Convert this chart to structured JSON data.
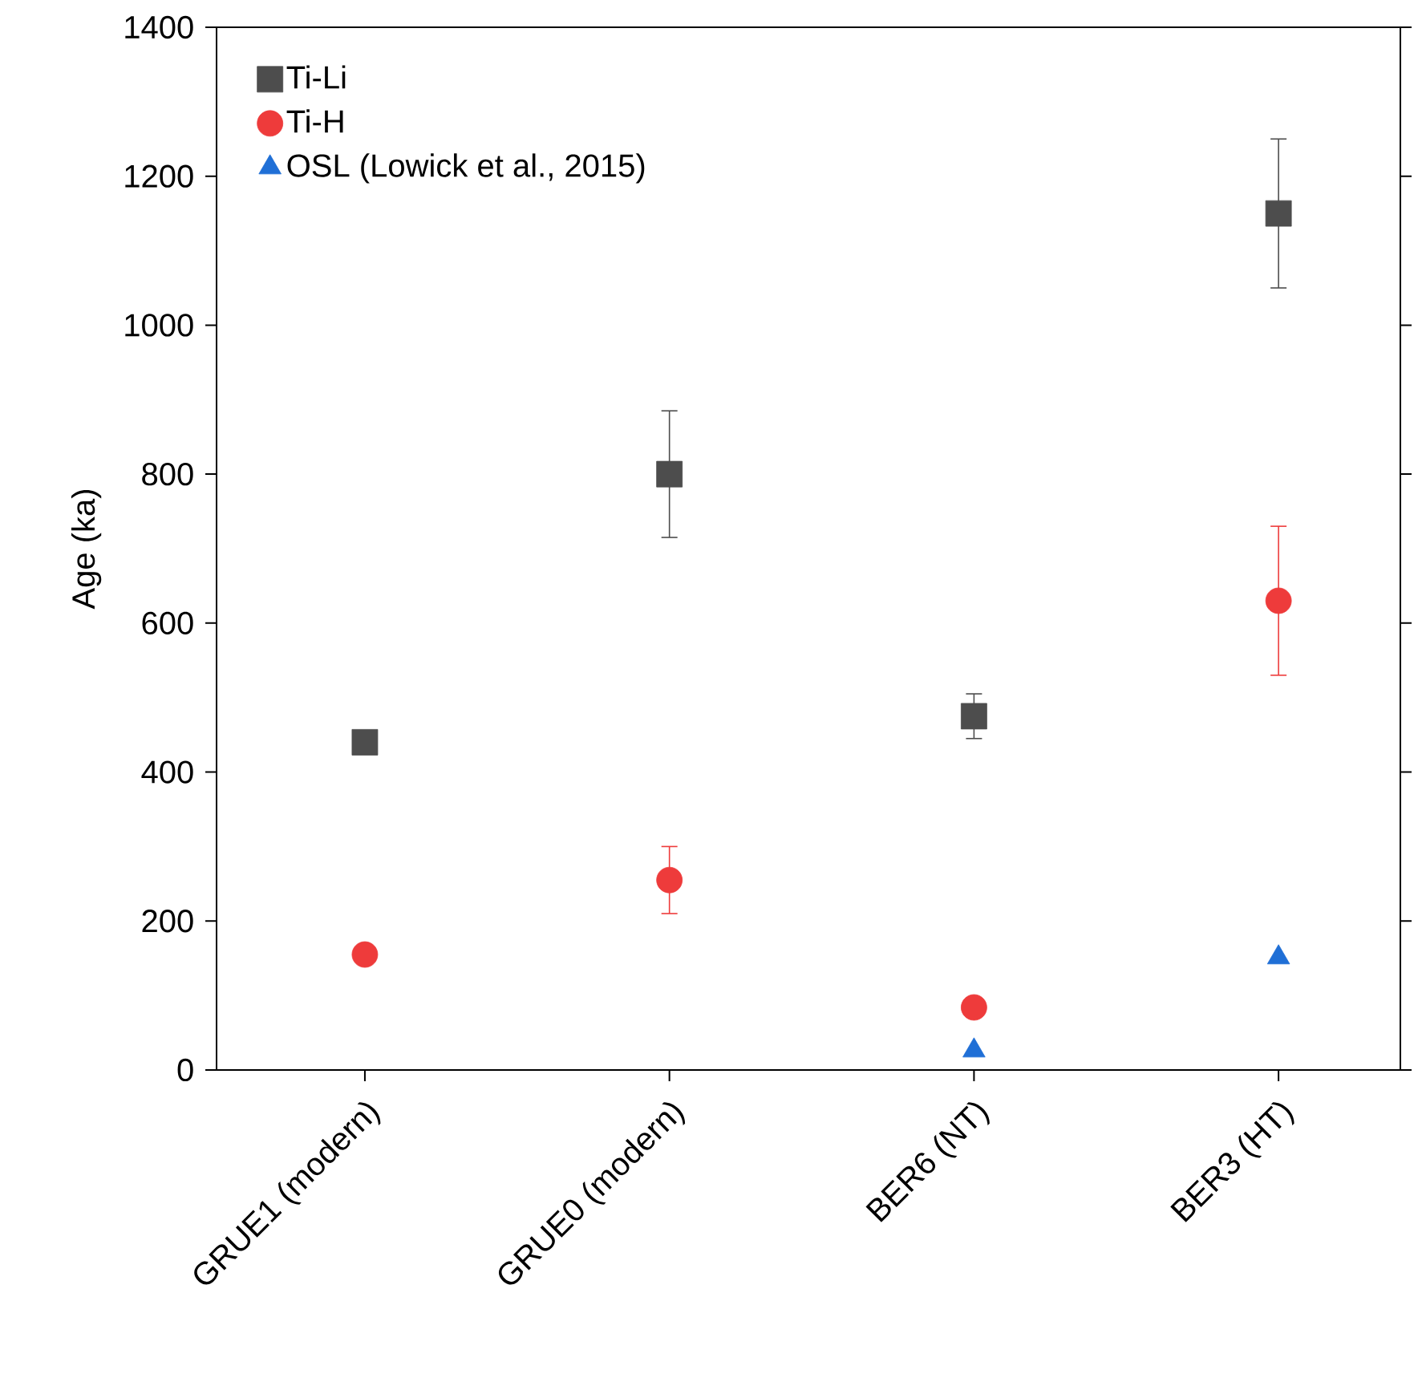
{
  "chart_data": {
    "type": "scatter",
    "ylabel": "Age (ka)",
    "categories": [
      "GRUE1 (modern)",
      "GRUE0 (modern)",
      "BER6 (NT)",
      "BER3 (HT)"
    ],
    "ylim": [
      0,
      1400
    ],
    "yticks": [
      0,
      200,
      400,
      600,
      800,
      1000,
      1200,
      1400
    ],
    "legend": "top left",
    "grid": false,
    "series": [
      {
        "name": "Ti-Li",
        "color": "#4d4d4d",
        "marker": "square",
        "values": [
          440,
          800,
          475,
          1150
        ],
        "errors": [
          15,
          85,
          30,
          100
        ]
      },
      {
        "name": "Ti-H",
        "color": "#ee3b3b",
        "marker": "circle",
        "values": [
          155,
          255,
          84,
          630
        ],
        "errors": [
          null,
          45,
          null,
          100
        ]
      },
      {
        "name": "OSL (Lowick et al., 2015)",
        "color": "#1f6fd6",
        "marker": "triangle",
        "values": [
          null,
          null,
          26,
          151
        ]
      }
    ]
  }
}
